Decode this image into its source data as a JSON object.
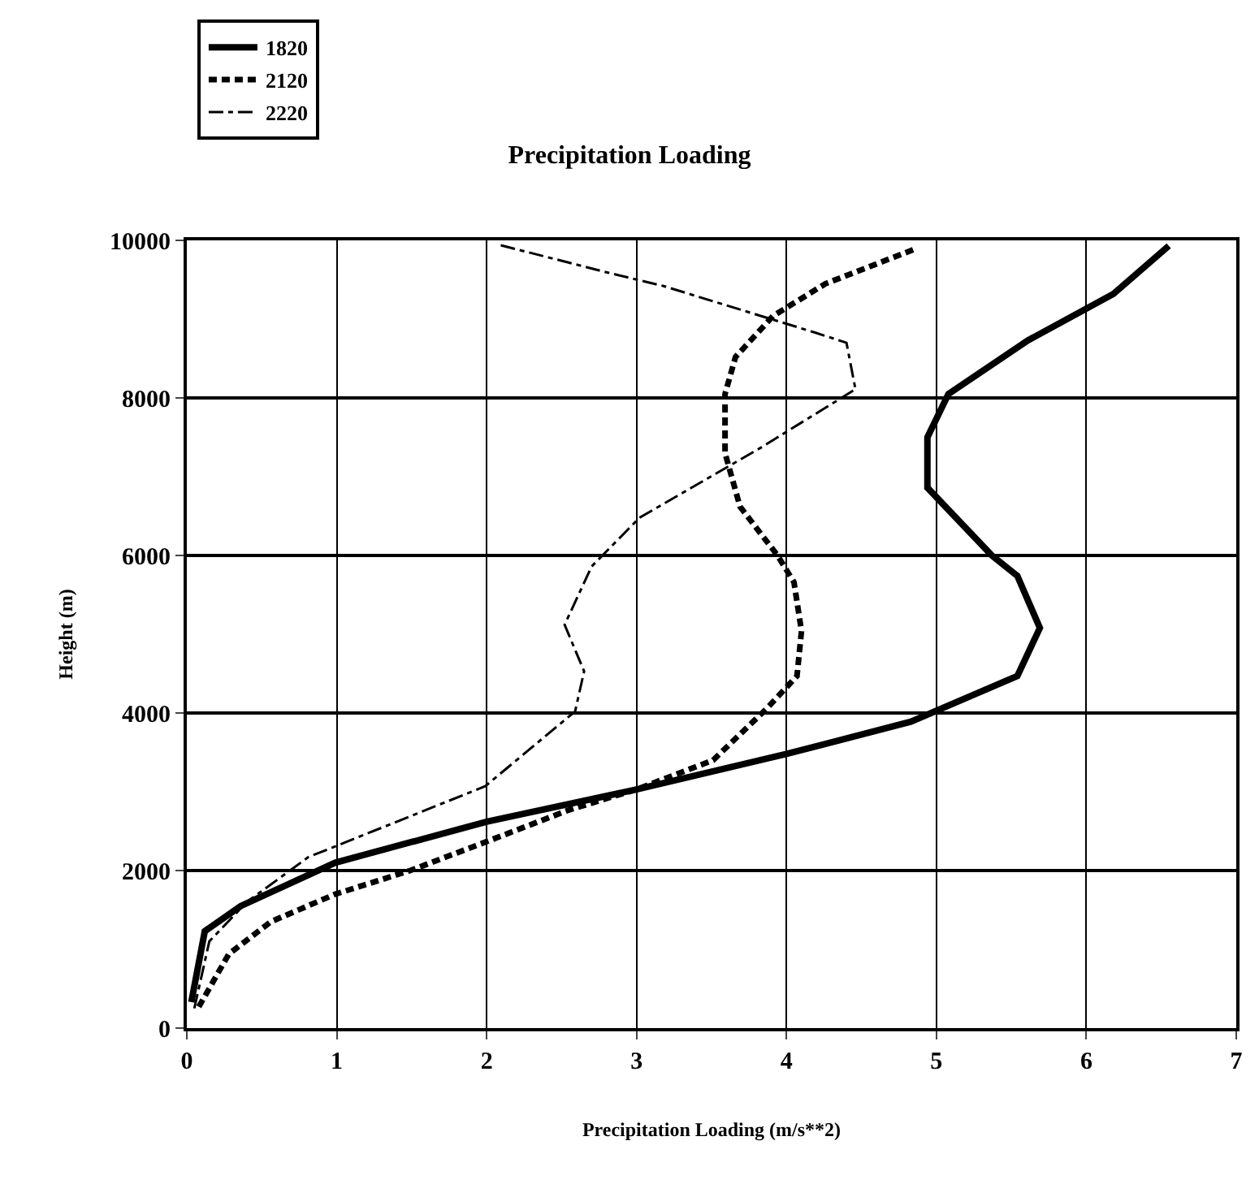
{
  "chart_data": {
    "type": "line",
    "title": "Precipitation Loading",
    "xlabel": "Precipitation Loading (m/s**2)",
    "ylabel": "Height (m)",
    "xlim": [
      0,
      7
    ],
    "xticks": [
      0,
      1,
      2,
      3,
      4,
      5,
      6,
      7
    ],
    "ylim": [
      0,
      10000
    ],
    "yticks": [
      0,
      2000,
      4000,
      6000,
      8000,
      10000
    ],
    "grid": true,
    "legend": "top left",
    "series": [
      {
        "name": "1820",
        "color": "#000000",
        "line_style": "solid",
        "x": [
          0.03,
          0.12,
          0.36,
          0.99,
          2.0,
          3.0,
          4.0,
          4.83,
          5.54,
          5.69,
          5.54,
          5.37,
          4.94,
          4.94,
          5.08,
          5.61,
          6.18,
          6.55
        ],
        "values": [
          330,
          1230,
          1550,
          2100,
          2620,
          3030,
          3480,
          3890,
          4470,
          5080,
          5740,
          6000,
          6860,
          7500,
          8050,
          8730,
          9320,
          9930
        ]
      },
      {
        "name": "2120",
        "color": "#000000",
        "line_style": "dashed",
        "x": [
          0.08,
          0.28,
          0.56,
          0.99,
          1.49,
          1.99,
          2.55,
          3.0,
          3.51,
          3.87,
          4.07,
          4.1,
          4.05,
          3.94,
          3.69,
          3.59,
          3.59,
          3.66,
          3.91,
          4.26,
          4.87
        ],
        "values": [
          270,
          940,
          1350,
          1700,
          2000,
          2360,
          2770,
          3030,
          3400,
          4060,
          4470,
          5040,
          5660,
          6000,
          6620,
          7300,
          8050,
          8520,
          9040,
          9450,
          9900
        ]
      },
      {
        "name": "2220",
        "color": "#000000",
        "line_style": "dashdot",
        "x": [
          0.05,
          0.15,
          0.4,
          0.81,
          1.99,
          2.59,
          2.65,
          2.52,
          2.7,
          3.02,
          3.83,
          4.46,
          4.4,
          4.19,
          3.18,
          2.81,
          2.09
        ],
        "values": [
          250,
          1100,
          1600,
          2170,
          3070,
          4020,
          4530,
          5120,
          5860,
          6480,
          7370,
          8110,
          8700,
          8830,
          9420,
          9590,
          9940
        ]
      }
    ]
  }
}
